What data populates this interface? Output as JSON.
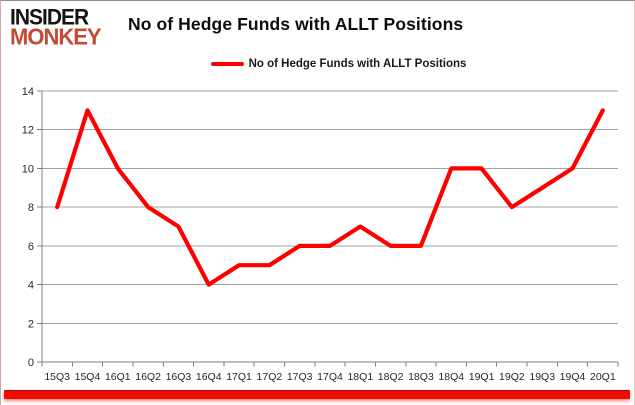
{
  "logo": {
    "line1": "INSIDER",
    "line2": "MONKEY"
  },
  "header": {
    "title": "No of Hedge Funds with ALLT Positions"
  },
  "legend": {
    "label": "No of Hedge Funds with ALLT Positions",
    "swatch_color": "#fe0000"
  },
  "chart_data": {
    "type": "line",
    "title": "No of Hedge Funds with ALLT Positions",
    "series_name": "No of Hedge Funds with ALLT Positions",
    "categories": [
      "15Q3",
      "15Q4",
      "16Q1",
      "16Q2",
      "16Q3",
      "16Q4",
      "17Q1",
      "17Q2",
      "17Q3",
      "17Q4",
      "18Q1",
      "18Q2",
      "18Q3",
      "18Q4",
      "19Q1",
      "19Q2",
      "19Q3",
      "19Q4",
      "20Q1"
    ],
    "values": [
      8,
      13,
      10,
      8,
      7,
      4,
      5,
      5,
      6,
      6,
      7,
      6,
      6,
      10,
      10,
      8,
      9,
      10,
      13
    ],
    "xlabel": "",
    "ylabel": "",
    "ylim": [
      0,
      14
    ],
    "yticks": [
      0,
      2,
      4,
      6,
      8,
      10,
      12,
      14
    ],
    "grid": true,
    "legend_position": "top-center",
    "line_color": "#fe0000",
    "gridline_color": "#a3a3a3",
    "axis_color": "#7f7f7f",
    "tick_label_color": "#262626"
  },
  "colors": {
    "logo_black": "#161412",
    "logo_red": "#c64a33",
    "accent_red": "#fe0000",
    "bottom_bar_red": "#f30b00"
  }
}
